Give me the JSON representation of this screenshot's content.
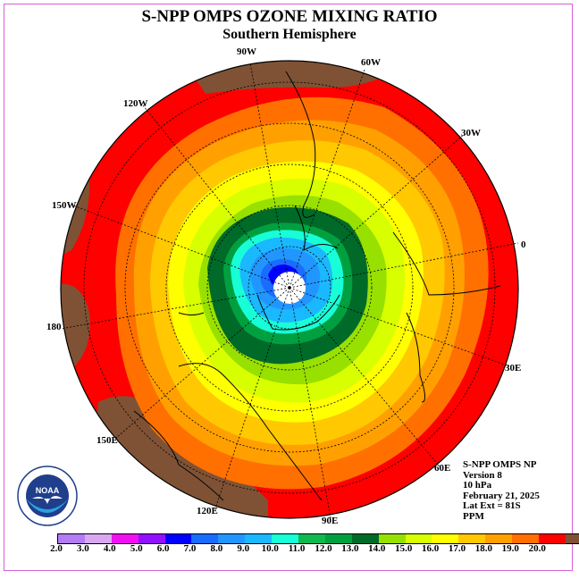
{
  "title": "S-NPP OMPS OZONE MIXING RATIO",
  "subtitle": "Southern Hemisphere",
  "longitude_labels": [
    "90W",
    "60W",
    "120W",
    "30W",
    "150W",
    "0",
    "180",
    "30E",
    "150E",
    "60E",
    "120E",
    "90E"
  ],
  "info": {
    "product": "S-NPP OMPS NP",
    "version": "Version 8",
    "level": "10 hPa",
    "date": "February 21, 2025",
    "lat_ext": "Lat Ext = 81S",
    "units": "PPM"
  },
  "colorbar": {
    "ticks": [
      "2.0",
      "3.0",
      "4.0",
      "5.0",
      "6.0",
      "7.0",
      "8.0",
      "9.0",
      "10.0",
      "11.0",
      "12.0",
      "13.0",
      "14.0",
      "15.0",
      "16.0",
      "17.0",
      "18.0",
      "19.0",
      "20.0"
    ],
    "colors": [
      "#b27cf4",
      "#d9a8f0",
      "#f010f0",
      "#9010ff",
      "#0000ff",
      "#1a6cff",
      "#2296ff",
      "#1ab8ff",
      "#18ffd8",
      "#10b850",
      "#00a040",
      "#006a28",
      "#98e000",
      "#d8ff00",
      "#ffff00",
      "#ffc800",
      "#ffa000",
      "#ff7000",
      "#ff0000",
      "#7f5235"
    ]
  },
  "logo": {
    "text": "NOAA",
    "ring_text": "NATIONAL OCEANIC AND ATMOSPHERIC ADMINISTRATION · U.S. DEPARTMENT OF COMMERCE"
  }
}
